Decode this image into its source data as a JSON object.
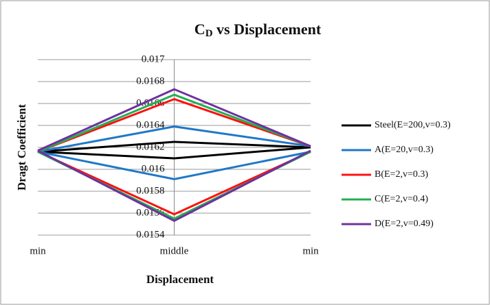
{
  "chart_data": {
    "type": "line",
    "title": [
      "C",
      "D",
      " vs Displacement"
    ],
    "ylabel": "Dragt Coefficient",
    "xlabel": "Displacement",
    "categories": [
      "min",
      "middle",
      "min"
    ],
    "ylim": [
      0.0154,
      0.017
    ],
    "yticks": [
      0.017,
      0.0168,
      0.0166,
      0.0164,
      0.0162,
      0.016,
      0.0158,
      0.0156,
      0.0154
    ],
    "grid": true,
    "series": [
      {
        "name": "Steel(E=200,v=0.3)",
        "color": "#000000",
        "upper": [
          0.01616,
          0.01625,
          0.0162
        ],
        "lower": [
          0.01616,
          0.0161,
          0.0162
        ]
      },
      {
        "name": "A(E=20,v=0.3)",
        "color": "#1f78c8",
        "upper": [
          0.01616,
          0.01639,
          0.01621
        ],
        "lower": [
          0.01616,
          0.01591,
          0.01616
        ]
      },
      {
        "name": "B(E=2,v=0.3)",
        "color": "#ff1010",
        "upper": [
          0.01616,
          0.01664,
          0.01621
        ],
        "lower": [
          0.01616,
          0.01559,
          0.01616
        ]
      },
      {
        "name": "C(E=2,v=0.4)",
        "color": "#20b050",
        "upper": [
          0.01616,
          0.01668,
          0.01621
        ],
        "lower": [
          0.01616,
          0.01555,
          0.01616
        ]
      },
      {
        "name": "D(E=2,v=0.49)",
        "color": "#7030a0",
        "upper": [
          0.01617,
          0.01673,
          0.01621
        ],
        "lower": [
          0.01617,
          0.01553,
          0.01617
        ]
      }
    ]
  }
}
